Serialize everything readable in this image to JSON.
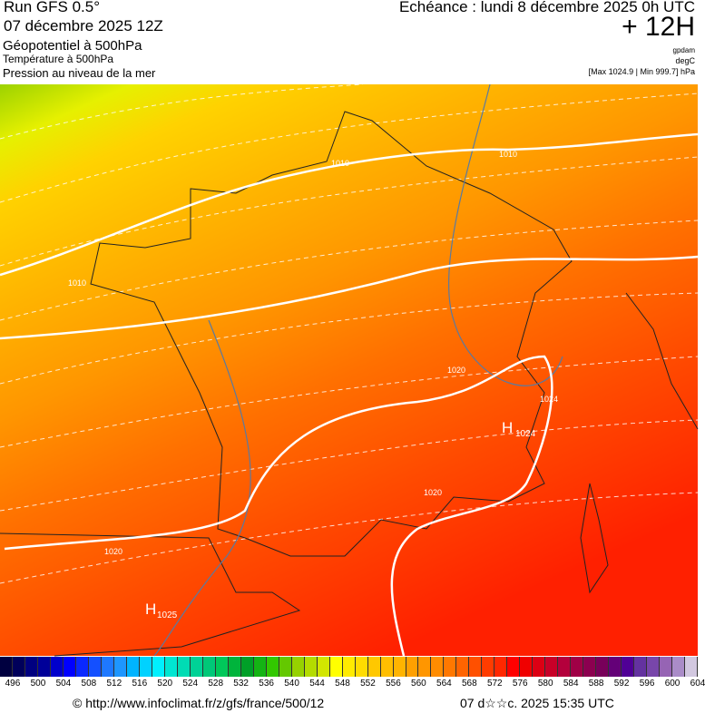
{
  "header": {
    "run": "Run GFS 0.5°",
    "date": "07 décembre 2025 12Z",
    "param1": "Géopotentiel à 500hPa",
    "param2": "Température à 500hPa",
    "param3": "Pression au niveau de la mer",
    "echeance": "Echéance : lundi 8 décembre 2025 0h UTC",
    "offset": "+ 12H",
    "unit1": "gpdam",
    "unit2": "degC",
    "range": "[Max 1024.9 | Min 999.7] hPa"
  },
  "map": {
    "isobar_labels": [
      "1010",
      "1010",
      "1010",
      "1020",
      "1020",
      "1020",
      "1024"
    ],
    "highs": [
      {
        "symbol": "H",
        "value": "1024"
      },
      {
        "symbol": "H",
        "value": "1025"
      }
    ]
  },
  "legend": {
    "ticks": [
      "496",
      "500",
      "504",
      "508",
      "512",
      "516",
      "520",
      "524",
      "528",
      "532",
      "536",
      "540",
      "544",
      "548",
      "552",
      "556",
      "560",
      "564",
      "568",
      "572",
      "576",
      "580",
      "584",
      "588",
      "592",
      "596",
      "600",
      "604"
    ],
    "colors": [
      "#000040",
      "#00005a",
      "#000080",
      "#000099",
      "#0000cc",
      "#0000ff",
      "#0a28ff",
      "#1450ff",
      "#1e78ff",
      "#1e96ff",
      "#00b4ff",
      "#00d2ff",
      "#00f0ff",
      "#00e6d2",
      "#00dcb4",
      "#00d296",
      "#00c878",
      "#00c85a",
      "#00b43c",
      "#00a028",
      "#14b414",
      "#32c800",
      "#64c800",
      "#96d200",
      "#b4dc00",
      "#d2e600",
      "#ffff00",
      "#ffeb00",
      "#ffdc00",
      "#ffc800",
      "#ffbe00",
      "#ffb400",
      "#ffa000",
      "#ff9600",
      "#ff8c00",
      "#ff7800",
      "#ff6400",
      "#ff5000",
      "#ff3c00",
      "#ff2800",
      "#ff0000",
      "#f00000",
      "#dc0014",
      "#c80028",
      "#b4003c",
      "#a00046",
      "#8c0050",
      "#78005a",
      "#640078",
      "#500096",
      "#6432a0",
      "#7846aa",
      "#9664b4",
      "#aa8cc8",
      "#d2c8e0"
    ]
  },
  "footer": {
    "url": "© http://www.infoclimat.fr/z/gfs/france/500/12",
    "timestamp": "07 d☆☆c. 2025 15:35 UTC"
  }
}
